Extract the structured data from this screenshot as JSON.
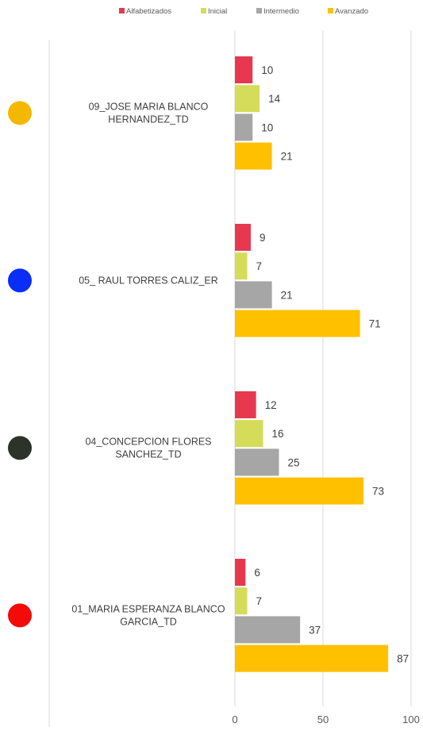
{
  "chart_data": {
    "type": "bar",
    "orientation": "horizontal",
    "title": "",
    "xlabel": "",
    "ylabel": "",
    "xlim": [
      0,
      100
    ],
    "xticks": [
      "0",
      "50",
      "100"
    ],
    "grid": true,
    "legend_position": "top",
    "categories": [
      {
        "label_lines": [
          "09_JOSE MARIA BLANCO",
          "HERNANDEZ_TD"
        ],
        "marker_color": "#F5B800"
      },
      {
        "label_lines": [
          "05_ RAUL TORRES CALIZ_ER"
        ],
        "marker_color": "#0A2EF5"
      },
      {
        "label_lines": [
          "04_CONCEPCION FLORES",
          "SANCHEZ_TD"
        ],
        "marker_color": "#2E3329"
      },
      {
        "label_lines": [
          "01_MARIA ESPERANZA BLANCO",
          "GARCIA_TD"
        ],
        "marker_color": "#F50A0A"
      }
    ],
    "series": [
      {
        "name": "Alfabetizados",
        "color": "#E8384F",
        "values": [
          10,
          9,
          12,
          6
        ]
      },
      {
        "name": "Inicial",
        "color": "#D4DC5A",
        "values": [
          14,
          7,
          16,
          7
        ]
      },
      {
        "name": "Intermedio",
        "color": "#A6A6A6",
        "values": [
          10,
          21,
          25,
          37
        ]
      },
      {
        "name": "Avanzado",
        "color": "#FFC000",
        "values": [
          21,
          71,
          73,
          87
        ]
      }
    ]
  }
}
